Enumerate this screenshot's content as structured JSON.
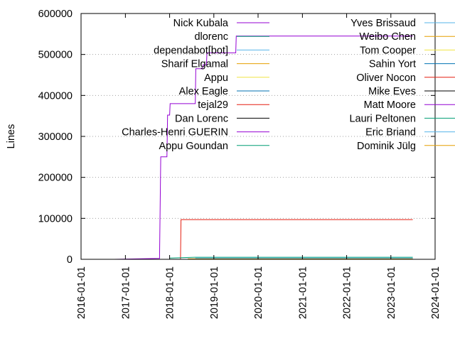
{
  "chart_data": {
    "type": "line",
    "title": "",
    "xlabel": "",
    "ylabel": "Lines",
    "x_type": "date",
    "xlim": [
      "2016-01-01",
      "2024-01-01"
    ],
    "ylim": [
      0,
      600000
    ],
    "x_ticks": [
      "2016-01-01",
      "2017-01-01",
      "2018-01-01",
      "2019-01-01",
      "2020-01-01",
      "2021-01-01",
      "2022-01-01",
      "2023-01-01",
      "2024-01-01"
    ],
    "y_ticks": [
      0,
      100000,
      200000,
      300000,
      400000,
      500000,
      600000
    ],
    "y_tick_labels": [
      "0",
      "100000",
      "200000",
      "300000",
      "400000",
      "500000",
      "600000"
    ],
    "grid": "horizontal dotted at y ticks",
    "legend_placement": "top, two columns, inside plot",
    "series": [
      {
        "name": "Nick Kubala",
        "color": "#9400d3",
        "points": [
          [
            "2016-10-01",
            0
          ],
          [
            "2017-10-10",
            2000
          ],
          [
            "2017-10-20",
            250000
          ],
          [
            "2017-12-10",
            250000
          ],
          [
            "2017-12-15",
            352000
          ],
          [
            "2018-01-01",
            352000
          ],
          [
            "2018-01-05",
            380000
          ],
          [
            "2018-08-01",
            380000
          ],
          [
            "2018-08-05",
            465000
          ],
          [
            "2018-10-01",
            465000
          ],
          [
            "2018-10-05",
            475000
          ],
          [
            "2018-11-01",
            475000
          ],
          [
            "2018-11-05",
            504000
          ],
          [
            "2019-07-01",
            504000
          ],
          [
            "2019-07-05",
            545000
          ],
          [
            "2023-07-01",
            545000
          ]
        ]
      },
      {
        "name": "dlorenc",
        "color": "#009e73",
        "points": [
          [
            "2018-01-01",
            3000
          ],
          [
            "2018-08-01",
            5000
          ],
          [
            "2023-07-01",
            5000
          ]
        ]
      },
      {
        "name": "dependabot[bot]",
        "color": "#56b4e9",
        "points": [
          [
            "2018-08-01",
            3000
          ],
          [
            "2023-07-01",
            3000
          ]
        ]
      },
      {
        "name": "Sharif Elgamal",
        "color": "#e69f00",
        "points": [
          [
            "2018-06-01",
            1000
          ],
          [
            "2023-07-01",
            1000
          ]
        ]
      },
      {
        "name": "Appu",
        "color": "#f0e442",
        "points": [
          [
            "2018-06-01",
            1000
          ],
          [
            "2023-07-01",
            1000
          ]
        ]
      },
      {
        "name": "Alex Eagle",
        "color": "#0072b2",
        "points": [
          [
            "2018-06-01",
            1000
          ],
          [
            "2023-07-01",
            1000
          ]
        ]
      },
      {
        "name": "tejal29",
        "color": "#e51e10",
        "points": [
          [
            "2018-03-01",
            0
          ],
          [
            "2018-04-01",
            0
          ],
          [
            "2018-04-05",
            97000
          ],
          [
            "2023-07-01",
            97000
          ]
        ]
      },
      {
        "name": "Dan Lorenc",
        "color": "#000000",
        "points": [
          [
            "2018-04-01",
            0
          ],
          [
            "2023-07-01",
            0
          ]
        ]
      },
      {
        "name": "Charles-Henri GUERIN",
        "color": "#9400d3",
        "points": [
          [
            "2018-06-01",
            0
          ],
          [
            "2023-07-01",
            0
          ]
        ]
      },
      {
        "name": "Appu Goundan",
        "color": "#009e73",
        "points": [
          [
            "2018-01-01",
            0
          ],
          [
            "2023-07-01",
            0
          ]
        ]
      },
      {
        "name": "Yves Brissaud",
        "color": "#56b4e9",
        "points": [
          [
            "2018-06-01",
            0
          ],
          [
            "2023-07-01",
            0
          ]
        ]
      },
      {
        "name": "Weibo Chen",
        "color": "#e69f00",
        "points": [
          [
            "2018-06-01",
            0
          ],
          [
            "2023-07-01",
            0
          ]
        ]
      },
      {
        "name": "Tom Cooper",
        "color": "#f0e442",
        "points": [
          [
            "2018-06-01",
            0
          ],
          [
            "2023-07-01",
            0
          ]
        ]
      },
      {
        "name": "Sahin Yort",
        "color": "#0072b2",
        "points": [
          [
            "2018-06-01",
            0
          ],
          [
            "2023-07-01",
            0
          ]
        ]
      },
      {
        "name": "Oliver Nocon",
        "color": "#e51e10",
        "points": [
          [
            "2018-06-01",
            0
          ],
          [
            "2023-07-01",
            0
          ]
        ]
      },
      {
        "name": "Mike Eves",
        "color": "#000000",
        "points": [
          [
            "2018-06-01",
            0
          ],
          [
            "2023-07-01",
            0
          ]
        ]
      },
      {
        "name": "Matt Moore",
        "color": "#9400d3",
        "points": [
          [
            "2018-06-01",
            0
          ],
          [
            "2023-07-01",
            0
          ]
        ]
      },
      {
        "name": "Lauri Peltonen",
        "color": "#009e73",
        "points": [
          [
            "2018-06-01",
            0
          ],
          [
            "2023-07-01",
            0
          ]
        ]
      },
      {
        "name": "Eric Briand",
        "color": "#56b4e9",
        "points": [
          [
            "2018-06-01",
            0
          ],
          [
            "2023-07-01",
            0
          ]
        ]
      },
      {
        "name": "Dominik Jülg",
        "color": "#e69f00",
        "points": [
          [
            "2018-06-01",
            0
          ],
          [
            "2023-07-01",
            0
          ]
        ]
      }
    ]
  }
}
